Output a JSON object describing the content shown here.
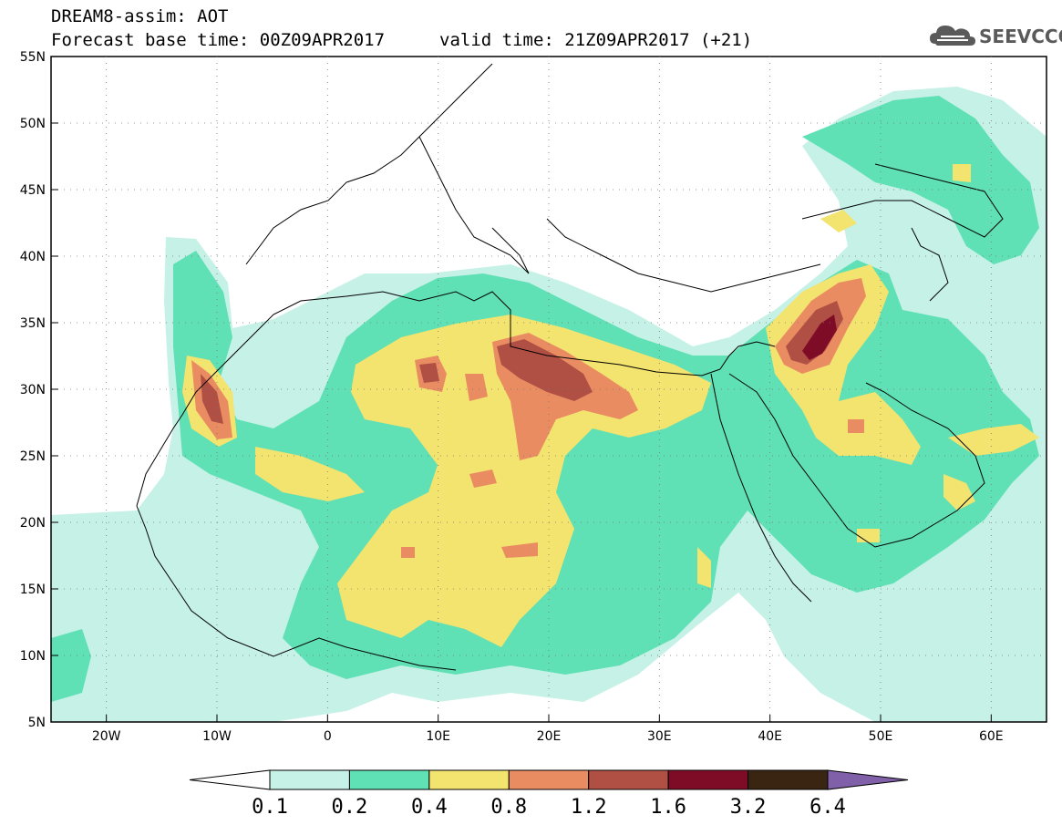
{
  "header": {
    "line1": "DREAM8-assim: AOT",
    "line2": "Forecast base time: 00Z09APR2017",
    "valid": "valid time: 21Z09APR2017 (+21)"
  },
  "logo": {
    "text": "SEEVCCC",
    "icon": "cloud-logo-icon"
  },
  "map": {
    "lat_labels": [
      "55N",
      "50N",
      "45N",
      "40N",
      "35N",
      "30N",
      "25N",
      "20N",
      "15N",
      "10N",
      "5N"
    ],
    "lon_labels": [
      "20W",
      "10W",
      "0",
      "10E",
      "20E",
      "30E",
      "40E",
      "50E",
      "60E"
    ],
    "lon_range": [
      -25,
      65
    ],
    "lat_range": [
      5,
      55
    ]
  },
  "colorbar": {
    "labels": [
      "0.1",
      "0.2",
      "0.4",
      "0.8",
      "1.2",
      "1.6",
      "3.2",
      "6.4"
    ],
    "colors": [
      "#ffffff",
      "#c6f1e6",
      "#5fe0b5",
      "#f3e36f",
      "#e98c62",
      "#b04f43",
      "#7f0c27",
      "#3a2512",
      "#8060a8"
    ]
  },
  "colors": {
    "level1": "#c6f1e6",
    "level2": "#5fe0b5",
    "level3": "#f3e36f",
    "level4": "#e98c62",
    "level5": "#b04f43",
    "level6": "#7f0c27",
    "land_outline": "#000000"
  }
}
